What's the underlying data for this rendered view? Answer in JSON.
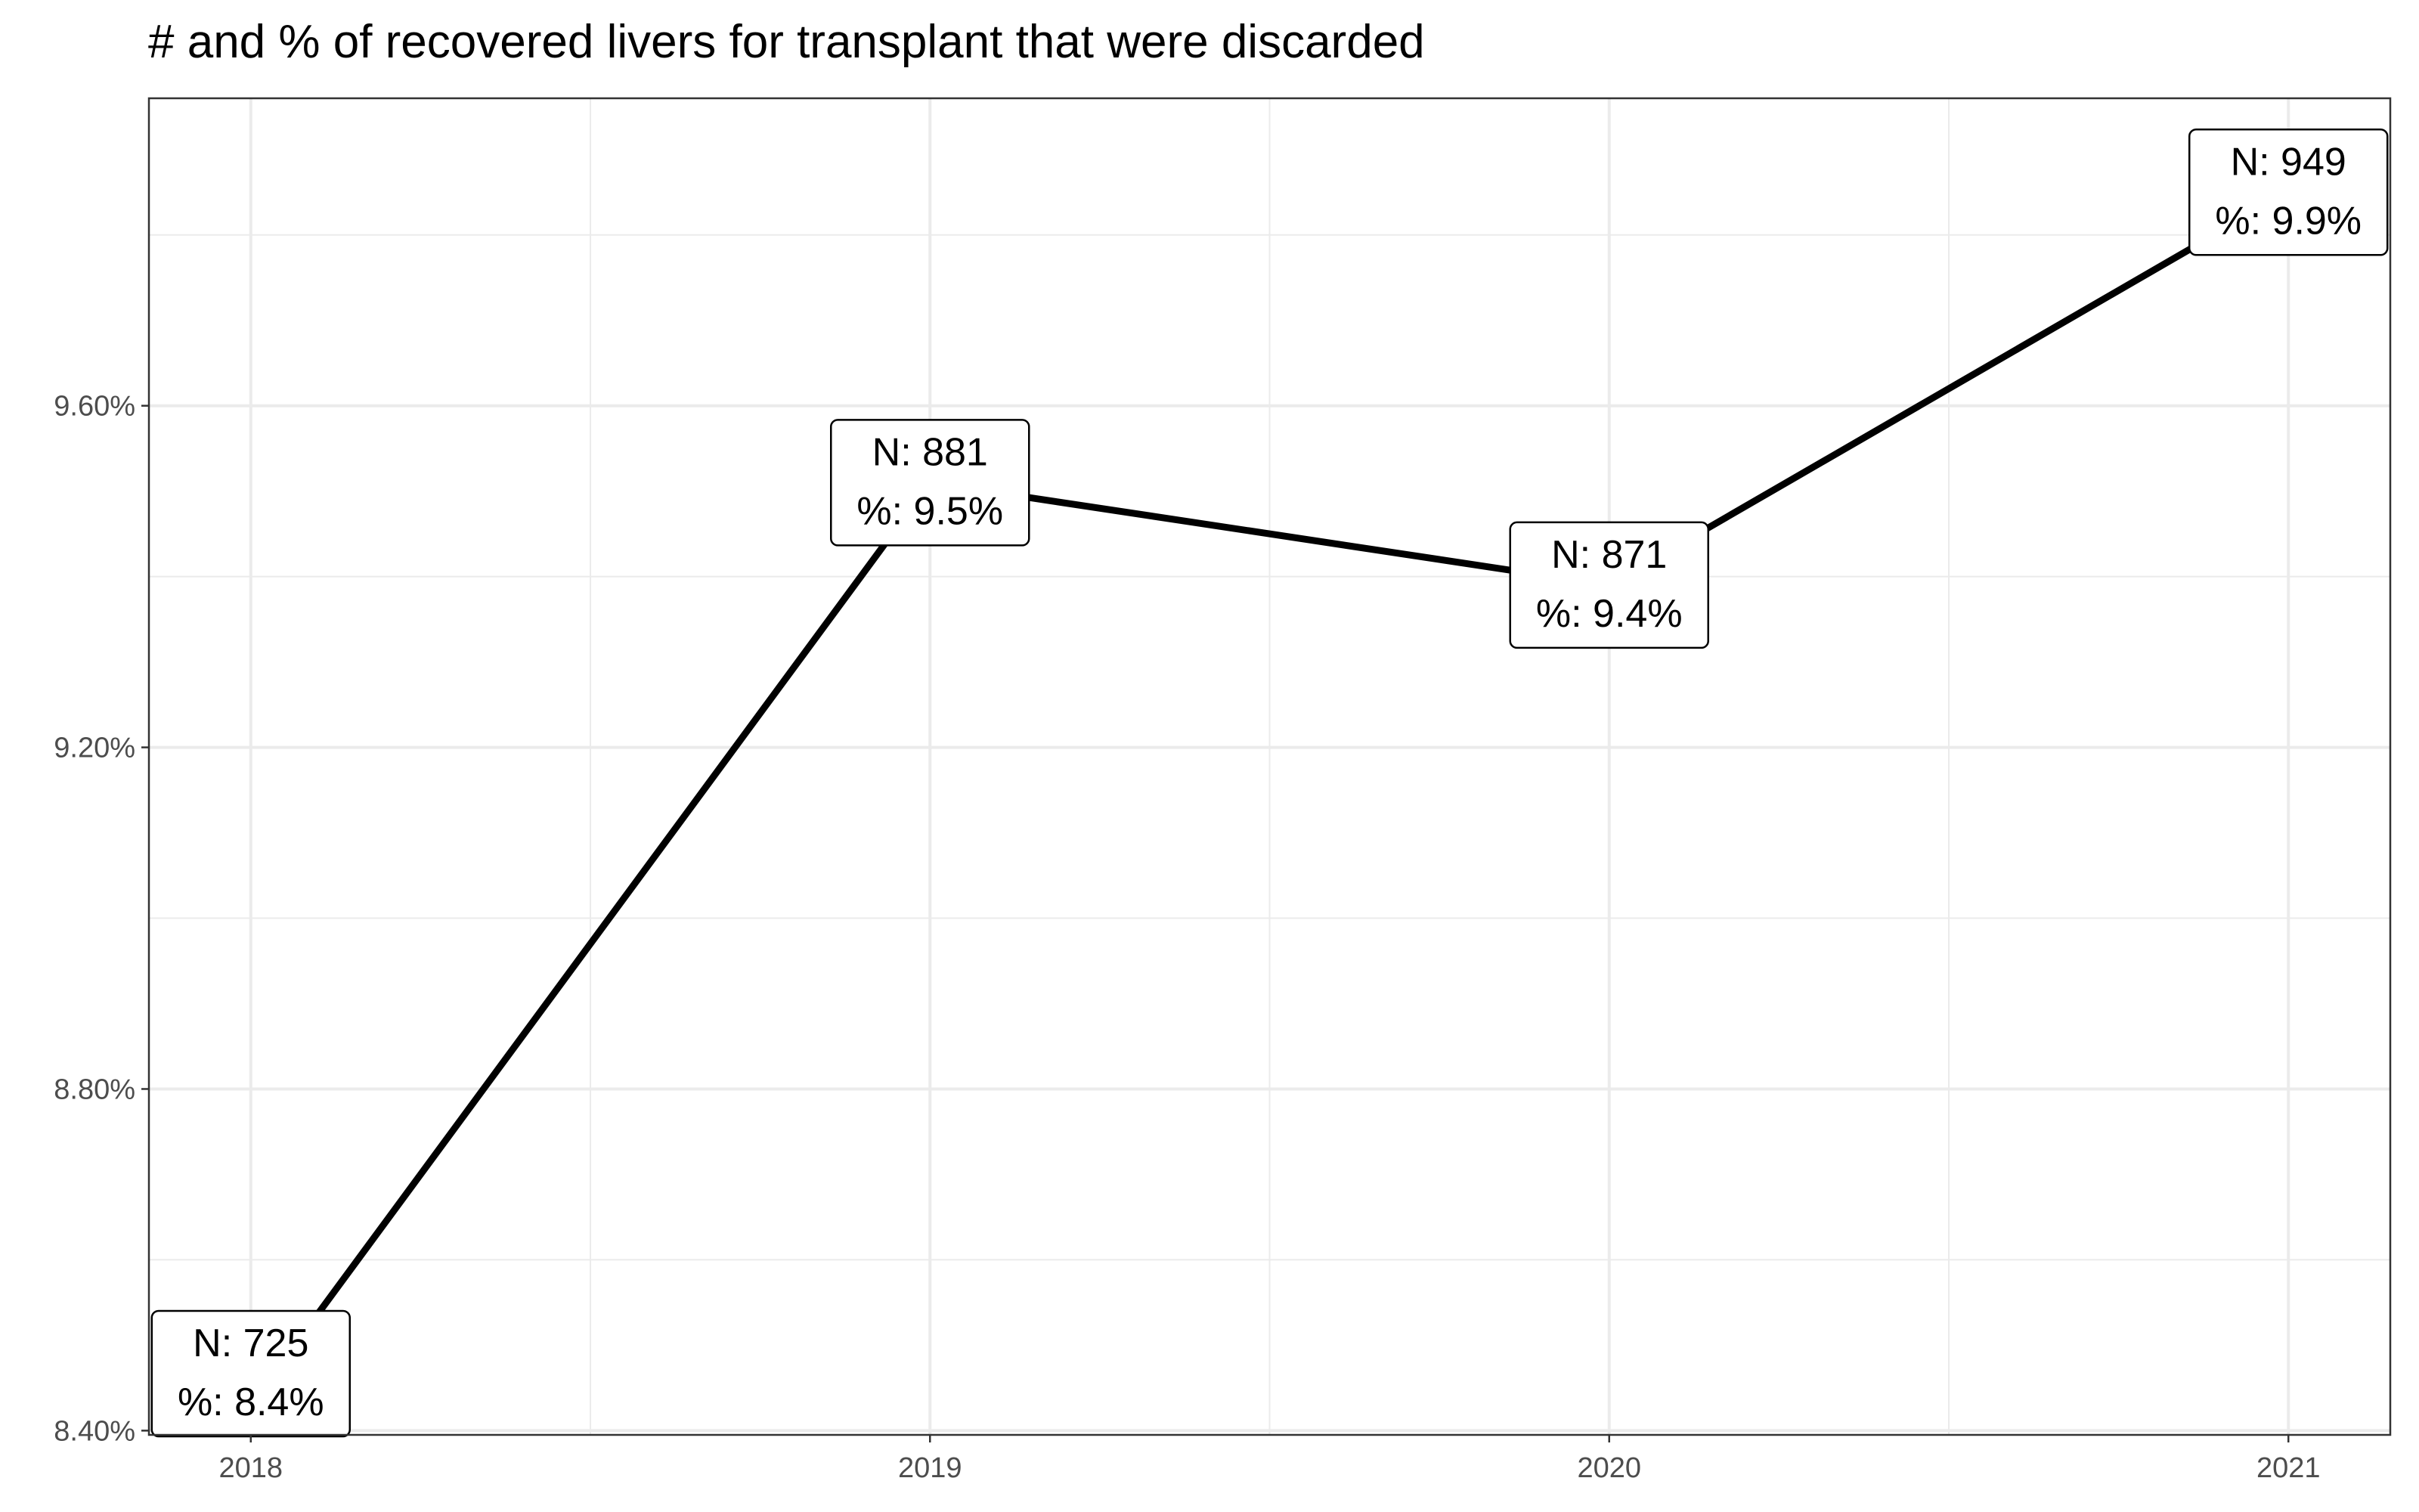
{
  "chart_data": {
    "type": "line",
    "title": "# and % of recovered livers for transplant that were discarded",
    "xlabel": "",
    "ylabel": "",
    "x": [
      2018,
      2019,
      2020,
      2021
    ],
    "x_tick_labels": [
      "2018",
      "2019",
      "2020",
      "2021"
    ],
    "series": [
      {
        "values": [
          8.43,
          9.51,
          9.39,
          9.85
        ]
      }
    ],
    "counts": [
      725,
      881,
      871,
      949
    ],
    "point_labels": [
      [
        "N: 725",
        "%: 8.4%"
      ],
      [
        "N: 881",
        "%: 9.5%"
      ],
      [
        "N: 871",
        "%: 9.4%"
      ],
      [
        "N: 949",
        "%: 9.9%"
      ]
    ],
    "y_ticks": [
      8.4,
      8.8,
      9.2,
      9.6
    ],
    "y_tick_labels": [
      "8.40%",
      "8.80%",
      "9.20%",
      "9.60%"
    ],
    "xlim": [
      2017.85,
      2021.15
    ],
    "ylim": [
      8.395,
      9.96
    ],
    "grid": true,
    "legend": "none",
    "colors": {
      "line": "#000000",
      "grid": "#ebebeb",
      "panel_border": "#333333",
      "label_bg": "#ffffff"
    }
  }
}
